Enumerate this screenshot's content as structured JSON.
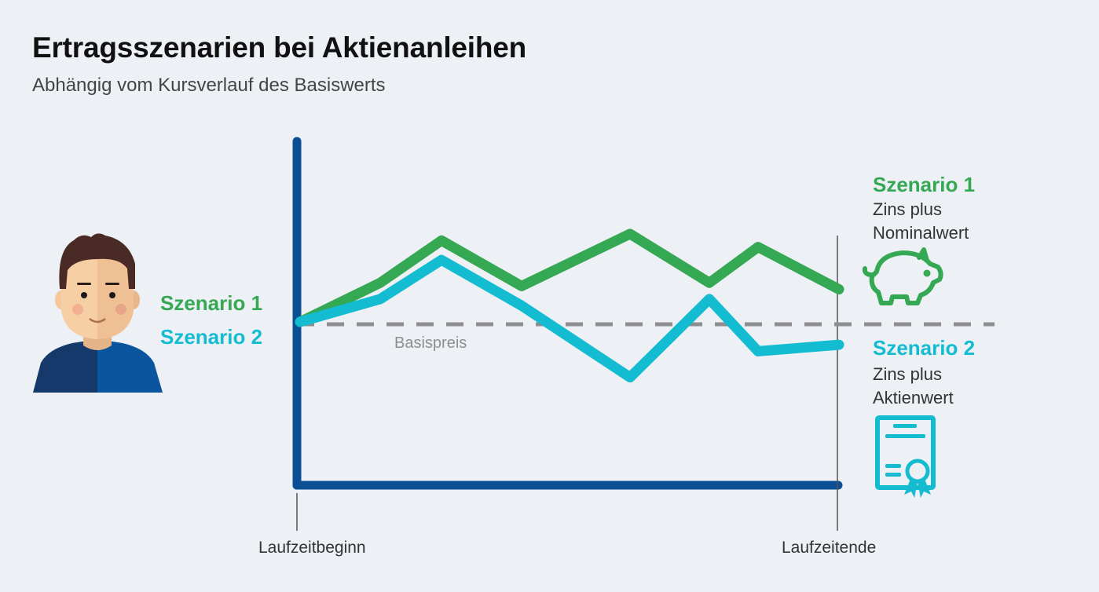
{
  "header": {
    "title": "Ertragsszenarien bei Aktienanleihen",
    "subtitle": "Abhängig vom Kursverlauf des Basiswerts"
  },
  "colors": {
    "scenario1": "#35a853",
    "scenario2": "#14bcd1",
    "axis": "#0a4f94",
    "basis": "#8e8e8e"
  },
  "chart_data": {
    "type": "line",
    "title": "Ertragsszenarien bei Aktienanleihen",
    "subtitle": "Abhängig vom Kursverlauf des Basiswerts",
    "x": [
      "Laufzeitbeginn",
      "",
      "",
      "",
      "",
      "",
      "",
      "Laufzeitende"
    ],
    "x_tick_labels": [
      "Laufzeitbeginn",
      "Laufzeitende"
    ],
    "reference_line": {
      "label": "Basispreis",
      "value": 0
    },
    "series": [
      {
        "name": "Szenario 1",
        "values": [
          0,
          12,
          25,
          11,
          27,
          12,
          23,
          10
        ]
      },
      {
        "name": "Szenario 2",
        "values": [
          0,
          7,
          19,
          5,
          -17,
          7,
          -9,
          -7
        ]
      }
    ],
    "left_labels": [
      "Szenario 1",
      "Szenario 2"
    ],
    "outcomes": [
      {
        "title": "Szenario 1",
        "line1": "Zins plus",
        "line2": "Nominalwert",
        "icon": "piggy-bank-icon"
      },
      {
        "title": "Szenario 2",
        "line1": "Zins plus",
        "line2": "Aktienwert",
        "icon": "certificate-icon"
      }
    ],
    "grid": false
  }
}
